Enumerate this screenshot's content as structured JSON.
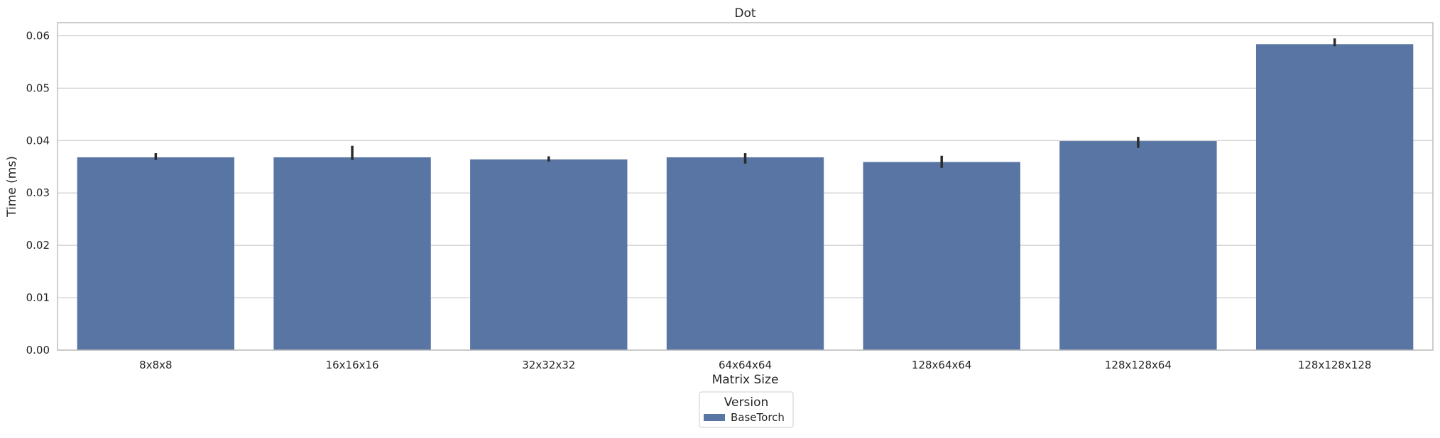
{
  "chart_data": {
    "type": "bar",
    "title": "Dot",
    "xlabel": "Matrix Size",
    "ylabel": "Time (ms)",
    "categories": [
      "8x8x8",
      "16x16x16",
      "32x32x32",
      "64x64x64",
      "128x64x64",
      "128x128x64",
      "128x128x128"
    ],
    "series": [
      {
        "name": "BaseTorch",
        "values": [
          0.0368,
          0.0368,
          0.0364,
          0.0368,
          0.0359,
          0.0399,
          0.0584
        ],
        "error_low": [
          0.0363,
          0.0363,
          0.036,
          0.0356,
          0.0348,
          0.0386,
          0.058
        ],
        "error_high": [
          0.0376,
          0.039,
          0.037,
          0.0376,
          0.0371,
          0.0407,
          0.0595
        ]
      }
    ],
    "ylim": [
      0,
      0.0625
    ],
    "yticks": [
      "0.00",
      "0.01",
      "0.02",
      "0.03",
      "0.04",
      "0.05",
      "0.06"
    ],
    "ytick_values": [
      0,
      0.01,
      0.02,
      0.03,
      0.04,
      0.05,
      0.06
    ],
    "grid": "horizontal",
    "legend": {
      "title": "Version",
      "placement": "bottom-center"
    },
    "colors": {
      "bar": "#5975a4",
      "error": "#2b2b2b",
      "grid": "#cccccc",
      "frame": "#bdbdbd"
    }
  }
}
